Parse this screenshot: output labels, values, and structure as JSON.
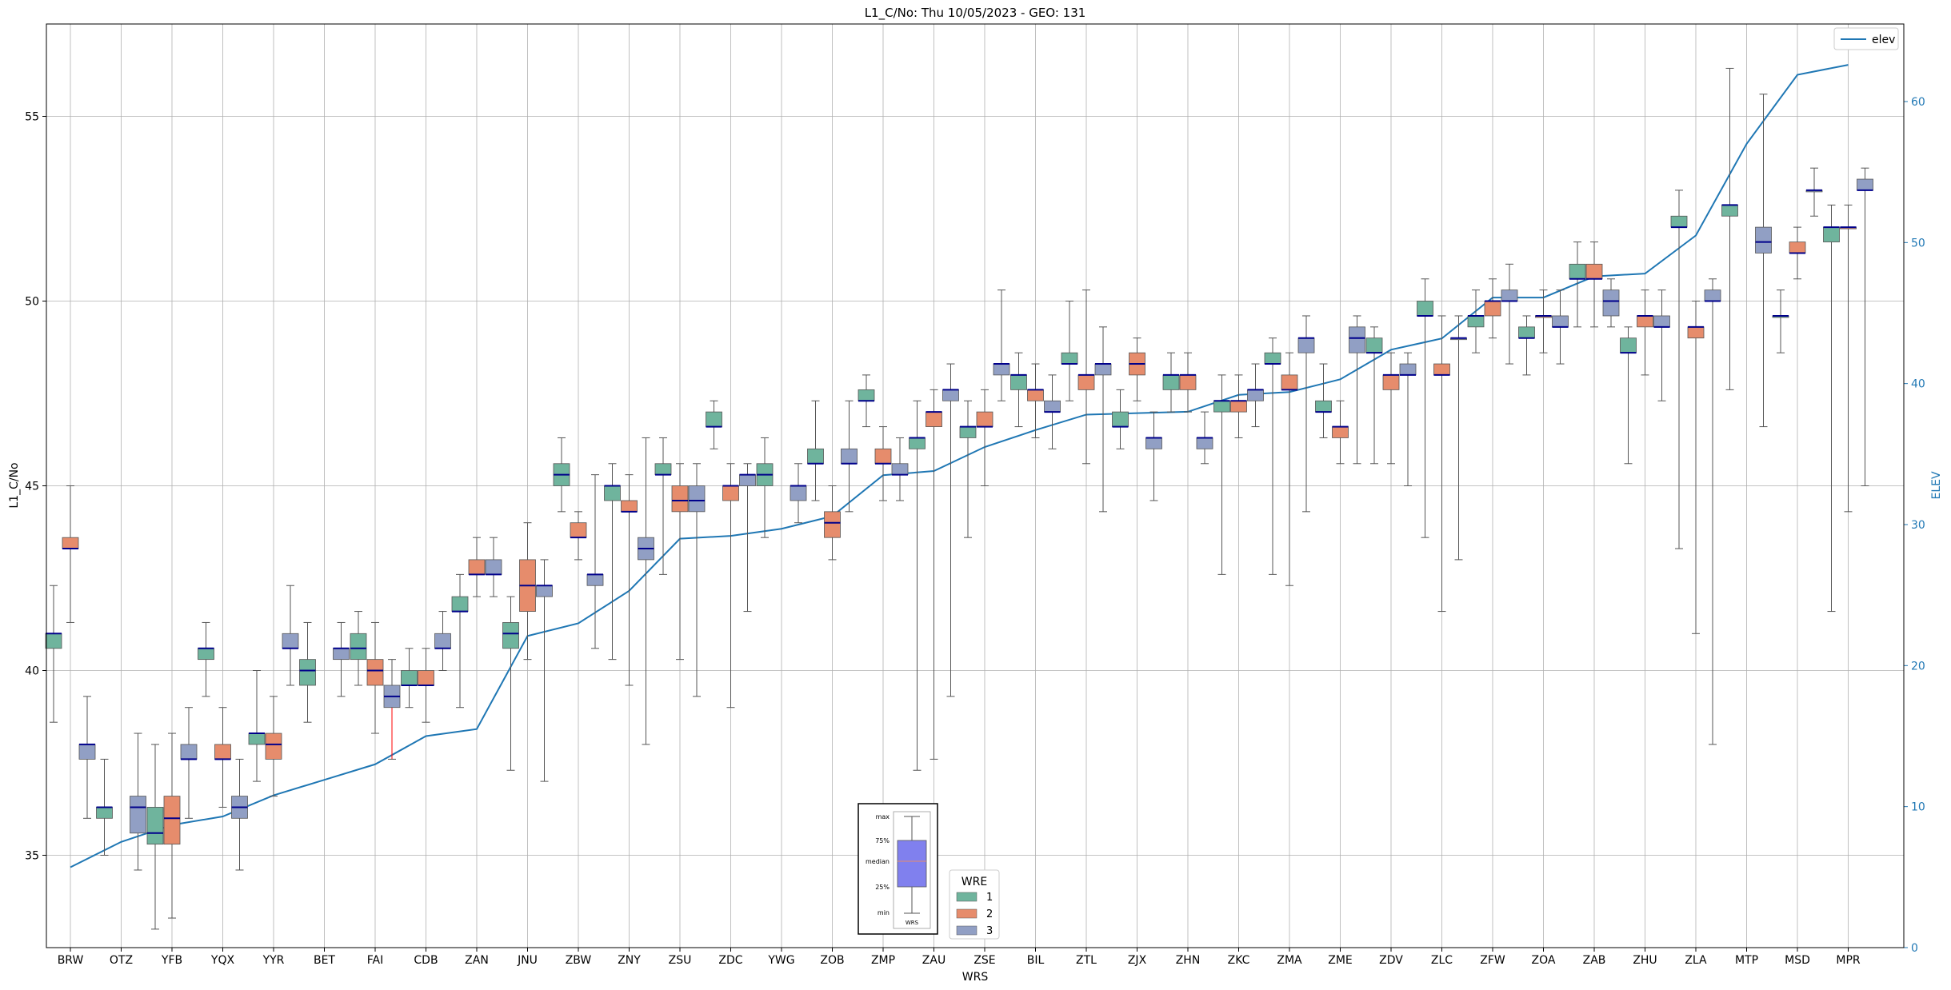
{
  "chart_data": {
    "type": "box",
    "title": "L1_C/No: Thu 10/05/2023 - GEO: 131",
    "xlabel": "WRS",
    "ylabel": "L1_C/No",
    "ylabel_right": "ELEV",
    "ylim": [
      32.5,
      57.5
    ],
    "ylim_right": [
      0,
      65.5
    ],
    "yticks": [
      35,
      40,
      45,
      50,
      55
    ],
    "yticks_right": [
      0,
      10,
      20,
      30,
      40,
      50,
      60
    ],
    "grid": true,
    "legend_top": {
      "label": "elev",
      "placement": "top-right"
    },
    "legend_wre": {
      "title": "WRE",
      "labels": [
        "1",
        "2",
        "3"
      ],
      "placement": "bottom-center"
    },
    "inset_labels": [
      "max",
      "75%",
      "median",
      "25%",
      "min",
      "WRS"
    ],
    "colors": {
      "1": "#6fb49d",
      "2": "#e68c6c",
      "3": "#919fc4",
      "elev": "#1f77b4",
      "median": "#00008b",
      "whisker": "#555555",
      "alert": "#ff0000",
      "inset_box": "#8080ee"
    },
    "categories": [
      "BRW",
      "OTZ",
      "YFB",
      "YQX",
      "YYR",
      "BET",
      "FAI",
      "CDB",
      "ZAN",
      "JNU",
      "ZBW",
      "ZNY",
      "ZSU",
      "ZDC",
      "YWG",
      "ZOB",
      "ZMP",
      "ZAU",
      "ZSE",
      "BIL",
      "ZTL",
      "ZJX",
      "ZHN",
      "ZKC",
      "ZMA",
      "ZME",
      "ZDV",
      "ZLC",
      "ZFW",
      "ZOA",
      "ZAB",
      "ZHU",
      "ZLA",
      "MTP",
      "MSD",
      "MPR"
    ],
    "elev": [
      5.7,
      7.5,
      8.7,
      9.3,
      10.8,
      11.9,
      13.0,
      15.0,
      15.5,
      22.1,
      23.0,
      25.3,
      29.0,
      29.2,
      29.7,
      30.6,
      33.5,
      33.8,
      35.5,
      36.7,
      37.8,
      37.9,
      38.0,
      39.2,
      39.4,
      40.3,
      42.4,
      43.2,
      46.1,
      46.1,
      47.6,
      47.8,
      50.5,
      57.0,
      61.9,
      62.6
    ],
    "boxes": [
      {
        "wrs": "BRW",
        "wre": "1",
        "min": 38.6,
        "q1": 40.6,
        "med": 41.0,
        "q3": 41.0,
        "max": 42.3
      },
      {
        "wrs": "BRW",
        "wre": "2",
        "min": 41.3,
        "q1": 43.3,
        "med": 43.3,
        "q3": 43.6,
        "max": 45.0
      },
      {
        "wrs": "BRW",
        "wre": "3",
        "min": 36.0,
        "q1": 37.6,
        "med": 38.0,
        "q3": 38.0,
        "max": 39.3
      },
      {
        "wrs": "OTZ",
        "wre": "1",
        "min": 35.0,
        "q1": 36.0,
        "med": 36.3,
        "q3": 36.3,
        "max": 37.6
      },
      {
        "wrs": "OTZ",
        "wre": "3",
        "min": 34.6,
        "q1": 35.6,
        "med": 36.3,
        "q3": 36.6,
        "max": 38.3
      },
      {
        "wrs": "YFB",
        "wre": "1",
        "min": 33.0,
        "q1": 35.3,
        "med": 35.6,
        "q3": 36.3,
        "max": 38.0
      },
      {
        "wrs": "YFB",
        "wre": "2",
        "min": 33.3,
        "q1": 35.3,
        "med": 36.0,
        "q3": 36.6,
        "max": 38.3
      },
      {
        "wrs": "YFB",
        "wre": "3",
        "min": 36.0,
        "q1": 37.6,
        "med": 37.6,
        "q3": 38.0,
        "max": 39.0
      },
      {
        "wrs": "YQX",
        "wre": "1",
        "min": 39.3,
        "q1": 40.3,
        "med": 40.6,
        "q3": 40.6,
        "max": 41.3
      },
      {
        "wrs": "YQX",
        "wre": "2",
        "min": 36.3,
        "q1": 37.6,
        "med": 37.6,
        "q3": 38.0,
        "max": 39.0
      },
      {
        "wrs": "YQX",
        "wre": "3",
        "min": 34.6,
        "q1": 36.0,
        "med": 36.3,
        "q3": 36.6,
        "max": 37.6
      },
      {
        "wrs": "YYR",
        "wre": "1",
        "min": 37.0,
        "q1": 38.0,
        "med": 38.3,
        "q3": 38.3,
        "max": 40.0
      },
      {
        "wrs": "YYR",
        "wre": "2",
        "min": 36.6,
        "q1": 37.6,
        "med": 38.0,
        "q3": 38.3,
        "max": 39.3
      },
      {
        "wrs": "YYR",
        "wre": "3",
        "min": 39.6,
        "q1": 40.6,
        "med": 40.6,
        "q3": 41.0,
        "max": 42.3
      },
      {
        "wrs": "BET",
        "wre": "1",
        "min": 38.6,
        "q1": 39.6,
        "med": 40.0,
        "q3": 40.3,
        "max": 41.3
      },
      {
        "wrs": "BET",
        "wre": "3",
        "min": 39.3,
        "q1": 40.3,
        "med": 40.6,
        "q3": 40.6,
        "max": 41.3
      },
      {
        "wrs": "FAI",
        "wre": "1",
        "min": 39.6,
        "q1": 40.3,
        "med": 40.6,
        "q3": 41.0,
        "max": 41.6
      },
      {
        "wrs": "FAI",
        "wre": "2",
        "min": 38.3,
        "q1": 39.6,
        "med": 40.0,
        "q3": 40.3,
        "max": 41.3
      },
      {
        "wrs": "FAI",
        "wre": "3",
        "min": 37.6,
        "q1": 39.0,
        "med": 39.3,
        "q3": 39.6,
        "max": 40.3,
        "alert": true
      },
      {
        "wrs": "CDB",
        "wre": "1",
        "min": 39.0,
        "q1": 39.6,
        "med": 39.6,
        "q3": 40.0,
        "max": 40.6
      },
      {
        "wrs": "CDB",
        "wre": "2",
        "min": 38.6,
        "q1": 39.6,
        "med": 39.6,
        "q3": 40.0,
        "max": 40.6
      },
      {
        "wrs": "CDB",
        "wre": "3",
        "min": 40.0,
        "q1": 40.6,
        "med": 40.6,
        "q3": 41.0,
        "max": 41.6
      },
      {
        "wrs": "ZAN",
        "wre": "1",
        "min": 39.0,
        "q1": 41.6,
        "med": 41.6,
        "q3": 42.0,
        "max": 42.6
      },
      {
        "wrs": "ZAN",
        "wre": "2",
        "min": 42.0,
        "q1": 42.6,
        "med": 42.6,
        "q3": 43.0,
        "max": 43.6
      },
      {
        "wrs": "ZAN",
        "wre": "3",
        "min": 42.0,
        "q1": 42.6,
        "med": 42.6,
        "q3": 43.0,
        "max": 43.6
      },
      {
        "wrs": "JNU",
        "wre": "1",
        "min": 37.3,
        "q1": 40.6,
        "med": 41.0,
        "q3": 41.3,
        "max": 42.0
      },
      {
        "wrs": "JNU",
        "wre": "2",
        "min": 40.3,
        "q1": 41.6,
        "med": 42.3,
        "q3": 43.0,
        "max": 44.0
      },
      {
        "wrs": "JNU",
        "wre": "3",
        "min": 37.0,
        "q1": 42.0,
        "med": 42.3,
        "q3": 42.3,
        "max": 43.0
      },
      {
        "wrs": "ZBW",
        "wre": "1",
        "min": 44.3,
        "q1": 45.0,
        "med": 45.3,
        "q3": 45.6,
        "max": 46.3
      },
      {
        "wrs": "ZBW",
        "wre": "2",
        "min": 43.0,
        "q1": 43.6,
        "med": 43.6,
        "q3": 44.0,
        "max": 44.3
      },
      {
        "wrs": "ZBW",
        "wre": "3",
        "min": 40.6,
        "q1": 42.3,
        "med": 42.6,
        "q3": 42.6,
        "max": 45.3
      },
      {
        "wrs": "ZNY",
        "wre": "1",
        "min": 40.3,
        "q1": 44.6,
        "med": 45.0,
        "q3": 45.0,
        "max": 45.6
      },
      {
        "wrs": "ZNY",
        "wre": "2",
        "min": 39.6,
        "q1": 44.3,
        "med": 44.3,
        "q3": 44.6,
        "max": 45.3
      },
      {
        "wrs": "ZNY",
        "wre": "3",
        "min": 38.0,
        "q1": 43.0,
        "med": 43.3,
        "q3": 43.6,
        "max": 46.3
      },
      {
        "wrs": "ZSU",
        "wre": "1",
        "min": 42.6,
        "q1": 45.3,
        "med": 45.3,
        "q3": 45.6,
        "max": 46.3
      },
      {
        "wrs": "ZSU",
        "wre": "2",
        "min": 40.3,
        "q1": 44.3,
        "med": 44.6,
        "q3": 45.0,
        "max": 45.6
      },
      {
        "wrs": "ZSU",
        "wre": "3",
        "min": 39.3,
        "q1": 44.3,
        "med": 44.6,
        "q3": 45.0,
        "max": 45.6
      },
      {
        "wrs": "ZDC",
        "wre": "1",
        "min": 46.0,
        "q1": 46.6,
        "med": 46.6,
        "q3": 47.0,
        "max": 47.3
      },
      {
        "wrs": "ZDC",
        "wre": "2",
        "min": 39.0,
        "q1": 44.6,
        "med": 45.0,
        "q3": 45.0,
        "max": 45.6
      },
      {
        "wrs": "ZDC",
        "wre": "3",
        "min": 41.6,
        "q1": 45.0,
        "med": 45.3,
        "q3": 45.3,
        "max": 45.6
      },
      {
        "wrs": "YWG",
        "wre": "1",
        "min": 43.6,
        "q1": 45.0,
        "med": 45.3,
        "q3": 45.6,
        "max": 46.3
      },
      {
        "wrs": "YWG",
        "wre": "3",
        "min": 44.0,
        "q1": 44.6,
        "med": 45.0,
        "q3": 45.0,
        "max": 45.6
      },
      {
        "wrs": "ZOB",
        "wre": "1",
        "min": 44.6,
        "q1": 45.6,
        "med": 45.6,
        "q3": 46.0,
        "max": 47.3
      },
      {
        "wrs": "ZOB",
        "wre": "2",
        "min": 43.0,
        "q1": 43.6,
        "med": 44.0,
        "q3": 44.3,
        "max": 45.0
      },
      {
        "wrs": "ZOB",
        "wre": "3",
        "min": 44.3,
        "q1": 45.6,
        "med": 45.6,
        "q3": 46.0,
        "max": 47.3
      },
      {
        "wrs": "ZMP",
        "wre": "1",
        "min": 46.6,
        "q1": 47.3,
        "med": 47.3,
        "q3": 47.6,
        "max": 48.0
      },
      {
        "wrs": "ZMP",
        "wre": "2",
        "min": 44.6,
        "q1": 45.6,
        "med": 45.6,
        "q3": 46.0,
        "max": 46.6
      },
      {
        "wrs": "ZMP",
        "wre": "3",
        "min": 44.6,
        "q1": 45.3,
        "med": 45.3,
        "q3": 45.6,
        "max": 46.3
      },
      {
        "wrs": "ZAU",
        "wre": "1",
        "min": 37.3,
        "q1": 46.0,
        "med": 46.3,
        "q3": 46.3,
        "max": 47.3
      },
      {
        "wrs": "ZAU",
        "wre": "2",
        "min": 37.6,
        "q1": 46.6,
        "med": 47.0,
        "q3": 47.0,
        "max": 47.6
      },
      {
        "wrs": "ZAU",
        "wre": "3",
        "min": 39.3,
        "q1": 47.3,
        "med": 47.6,
        "q3": 47.6,
        "max": 48.3
      },
      {
        "wrs": "ZSE",
        "wre": "1",
        "min": 43.6,
        "q1": 46.3,
        "med": 46.6,
        "q3": 46.6,
        "max": 47.3
      },
      {
        "wrs": "ZSE",
        "wre": "2",
        "min": 45.0,
        "q1": 46.6,
        "med": 46.6,
        "q3": 47.0,
        "max": 47.6
      },
      {
        "wrs": "ZSE",
        "wre": "3",
        "min": 47.3,
        "q1": 48.0,
        "med": 48.3,
        "q3": 48.3,
        "max": 50.3
      },
      {
        "wrs": "BIL",
        "wre": "1",
        "min": 46.6,
        "q1": 47.6,
        "med": 48.0,
        "q3": 48.0,
        "max": 48.6
      },
      {
        "wrs": "BIL",
        "wre": "2",
        "min": 46.3,
        "q1": 47.3,
        "med": 47.6,
        "q3": 47.6,
        "max": 48.3
      },
      {
        "wrs": "BIL",
        "wre": "3",
        "min": 46.0,
        "q1": 47.0,
        "med": 47.0,
        "q3": 47.3,
        "max": 48.0
      },
      {
        "wrs": "ZTL",
        "wre": "1",
        "min": 47.3,
        "q1": 48.3,
        "med": 48.3,
        "q3": 48.6,
        "max": 50.0
      },
      {
        "wrs": "ZTL",
        "wre": "2",
        "min": 45.6,
        "q1": 47.6,
        "med": 48.0,
        "q3": 48.0,
        "max": 50.3
      },
      {
        "wrs": "ZTL",
        "wre": "3",
        "min": 44.3,
        "q1": 48.0,
        "med": 48.3,
        "q3": 48.3,
        "max": 49.3
      },
      {
        "wrs": "ZJX",
        "wre": "1",
        "min": 46.0,
        "q1": 46.6,
        "med": 46.6,
        "q3": 47.0,
        "max": 47.6
      },
      {
        "wrs": "ZJX",
        "wre": "2",
        "min": 47.3,
        "q1": 48.0,
        "med": 48.3,
        "q3": 48.6,
        "max": 49.0
      },
      {
        "wrs": "ZJX",
        "wre": "3",
        "min": 44.6,
        "q1": 46.0,
        "med": 46.3,
        "q3": 46.3,
        "max": 47.0
      },
      {
        "wrs": "ZHN",
        "wre": "1",
        "min": 47.0,
        "q1": 47.6,
        "med": 48.0,
        "q3": 48.0,
        "max": 48.6
      },
      {
        "wrs": "ZHN",
        "wre": "2",
        "min": 47.0,
        "q1": 47.6,
        "med": 48.0,
        "q3": 48.0,
        "max": 48.6
      },
      {
        "wrs": "ZHN",
        "wre": "3",
        "min": 45.6,
        "q1": 46.0,
        "med": 46.3,
        "q3": 46.3,
        "max": 47.0
      },
      {
        "wrs": "ZKC",
        "wre": "1",
        "min": 42.6,
        "q1": 47.0,
        "med": 47.3,
        "q3": 47.3,
        "max": 48.0
      },
      {
        "wrs": "ZKC",
        "wre": "2",
        "min": 46.3,
        "q1": 47.0,
        "med": 47.3,
        "q3": 47.3,
        "max": 48.0
      },
      {
        "wrs": "ZKC",
        "wre": "3",
        "min": 46.6,
        "q1": 47.3,
        "med": 47.6,
        "q3": 47.6,
        "max": 48.3
      },
      {
        "wrs": "ZMA",
        "wre": "1",
        "min": 42.6,
        "q1": 48.3,
        "med": 48.3,
        "q3": 48.6,
        "max": 49.0
      },
      {
        "wrs": "ZMA",
        "wre": "2",
        "min": 42.3,
        "q1": 47.6,
        "med": 47.6,
        "q3": 48.0,
        "max": 48.6
      },
      {
        "wrs": "ZMA",
        "wre": "3",
        "min": 44.3,
        "q1": 48.6,
        "med": 49.0,
        "q3": 49.0,
        "max": 49.6
      },
      {
        "wrs": "ZME",
        "wre": "1",
        "min": 46.3,
        "q1": 47.0,
        "med": 47.0,
        "q3": 47.3,
        "max": 48.3
      },
      {
        "wrs": "ZME",
        "wre": "2",
        "min": 45.6,
        "q1": 46.3,
        "med": 46.6,
        "q3": 46.6,
        "max": 47.3
      },
      {
        "wrs": "ZME",
        "wre": "3",
        "min": 45.6,
        "q1": 48.6,
        "med": 49.0,
        "q3": 49.3,
        "max": 49.6
      },
      {
        "wrs": "ZDV",
        "wre": "1",
        "min": 45.6,
        "q1": 48.6,
        "med": 48.6,
        "q3": 49.0,
        "max": 49.3
      },
      {
        "wrs": "ZDV",
        "wre": "2",
        "min": 45.6,
        "q1": 47.6,
        "med": 48.0,
        "q3": 48.0,
        "max": 48.6
      },
      {
        "wrs": "ZDV",
        "wre": "3",
        "min": 45.0,
        "q1": 48.0,
        "med": 48.0,
        "q3": 48.3,
        "max": 48.6
      },
      {
        "wrs": "ZLC",
        "wre": "1",
        "min": 43.6,
        "q1": 49.6,
        "med": 49.6,
        "q3": 50.0,
        "max": 50.6
      },
      {
        "wrs": "ZLC",
        "wre": "2",
        "min": 41.6,
        "q1": 48.0,
        "med": 48.0,
        "q3": 48.3,
        "max": 49.6
      },
      {
        "wrs": "ZLC",
        "wre": "3",
        "min": 43.0,
        "q1": 49.0,
        "med": 49.0,
        "q3": 49.0,
        "max": 49.6
      },
      {
        "wrs": "ZFW",
        "wre": "1",
        "min": 48.6,
        "q1": 49.3,
        "med": 49.6,
        "q3": 49.6,
        "max": 50.3
      },
      {
        "wrs": "ZFW",
        "wre": "2",
        "min": 49.0,
        "q1": 49.6,
        "med": 50.0,
        "q3": 50.0,
        "max": 50.6
      },
      {
        "wrs": "ZFW",
        "wre": "3",
        "min": 48.3,
        "q1": 50.0,
        "med": 50.0,
        "q3": 50.3,
        "max": 51.0
      },
      {
        "wrs": "ZOA",
        "wre": "1",
        "min": 48.0,
        "q1": 49.0,
        "med": 49.0,
        "q3": 49.3,
        "max": 49.6
      },
      {
        "wrs": "ZOA",
        "wre": "2",
        "min": 48.6,
        "q1": 49.6,
        "med": 49.6,
        "q3": 49.6,
        "max": 50.3
      },
      {
        "wrs": "ZOA",
        "wre": "3",
        "min": 48.3,
        "q1": 49.3,
        "med": 49.3,
        "q3": 49.6,
        "max": 50.3
      },
      {
        "wrs": "ZAB",
        "wre": "1",
        "min": 49.3,
        "q1": 50.6,
        "med": 50.6,
        "q3": 51.0,
        "max": 51.6
      },
      {
        "wrs": "ZAB",
        "wre": "2",
        "min": 49.3,
        "q1": 50.6,
        "med": 50.6,
        "q3": 51.0,
        "max": 51.6
      },
      {
        "wrs": "ZAB",
        "wre": "3",
        "min": 49.3,
        "q1": 49.6,
        "med": 50.0,
        "q3": 50.3,
        "max": 50.6
      },
      {
        "wrs": "ZHU",
        "wre": "1",
        "min": 45.6,
        "q1": 48.6,
        "med": 48.6,
        "q3": 49.0,
        "max": 49.3
      },
      {
        "wrs": "ZHU",
        "wre": "2",
        "min": 48.0,
        "q1": 49.3,
        "med": 49.6,
        "q3": 49.6,
        "max": 50.3
      },
      {
        "wrs": "ZHU",
        "wre": "3",
        "min": 47.3,
        "q1": 49.3,
        "med": 49.3,
        "q3": 49.6,
        "max": 50.3
      },
      {
        "wrs": "ZLA",
        "wre": "1",
        "min": 43.3,
        "q1": 52.0,
        "med": 52.0,
        "q3": 52.3,
        "max": 53.0
      },
      {
        "wrs": "ZLA",
        "wre": "2",
        "min": 41.0,
        "q1": 49.0,
        "med": 49.3,
        "q3": 49.3,
        "max": 50.0
      },
      {
        "wrs": "ZLA",
        "wre": "3",
        "min": 38.0,
        "q1": 50.0,
        "med": 50.0,
        "q3": 50.3,
        "max": 50.6
      },
      {
        "wrs": "MTP",
        "wre": "1",
        "min": 47.6,
        "q1": 52.3,
        "med": 52.6,
        "q3": 52.6,
        "max": 56.3
      },
      {
        "wrs": "MTP",
        "wre": "3",
        "min": 46.6,
        "q1": 51.3,
        "med": 51.6,
        "q3": 52.0,
        "max": 55.6
      },
      {
        "wrs": "MSD",
        "wre": "1",
        "min": 48.6,
        "q1": 49.6,
        "med": 49.6,
        "q3": 49.6,
        "max": 50.3
      },
      {
        "wrs": "MSD",
        "wre": "2",
        "min": 50.6,
        "q1": 51.3,
        "med": 51.3,
        "q3": 51.6,
        "max": 52.0
      },
      {
        "wrs": "MSD",
        "wre": "3",
        "min": 52.3,
        "q1": 53.0,
        "med": 53.0,
        "q3": 53.0,
        "max": 53.6
      },
      {
        "wrs": "MPR",
        "wre": "1",
        "min": 41.6,
        "q1": 51.6,
        "med": 52.0,
        "q3": 52.0,
        "max": 52.6
      },
      {
        "wrs": "MPR",
        "wre": "2",
        "min": 44.3,
        "q1": 52.0,
        "med": 52.0,
        "q3": 52.0,
        "max": 52.6
      },
      {
        "wrs": "MPR",
        "wre": "3",
        "min": 45.0,
        "q1": 53.0,
        "med": 53.0,
        "q3": 53.3,
        "max": 53.6
      }
    ]
  }
}
